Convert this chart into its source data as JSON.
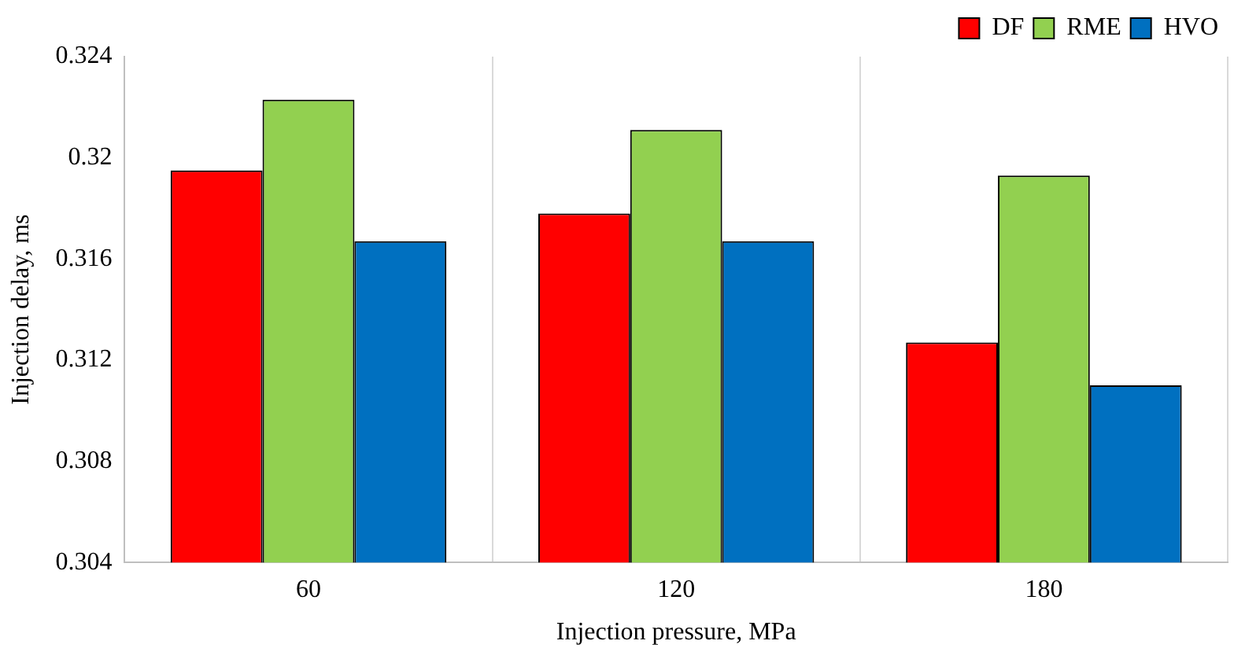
{
  "chart_data": {
    "type": "bar",
    "xlabel": "Injection pressure, MPa",
    "ylabel": "Injection delay, ms",
    "categories": [
      "60",
      "120",
      "180"
    ],
    "series": [
      {
        "name": "DF",
        "color": "#ff0000",
        "values": [
          0.3195,
          0.3178,
          0.3127
        ]
      },
      {
        "name": "RME",
        "color": "#92d050",
        "values": [
          0.3223,
          0.3211,
          0.3193
        ]
      },
      {
        "name": "HVO",
        "color": "#0070c0",
        "values": [
          0.3167,
          0.3167,
          0.311
        ]
      }
    ],
    "ylim": [
      0.304,
      0.324
    ],
    "yticks": [
      0.304,
      0.308,
      0.312,
      0.316,
      0.32,
      0.324
    ],
    "grid": "x",
    "legend": "top right"
  }
}
